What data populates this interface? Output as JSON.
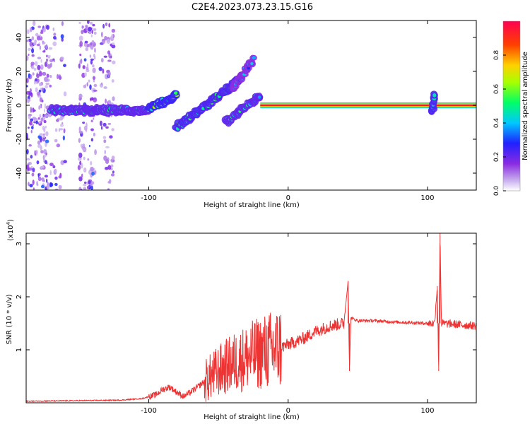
{
  "title": "C2E4.2023.073.23.15.G16",
  "chart_data": [
    {
      "type": "heatmap",
      "xlabel": "Height of straight line (km)",
      "ylabel": "Frequency (Hz)",
      "xlim": [
        -188,
        135
      ],
      "ylim": [
        -50,
        50
      ],
      "xticks": [
        -100,
        0,
        100
      ],
      "yticks": [
        -40,
        -20,
        0,
        20,
        40
      ],
      "colorbar": {
        "label": "Normalized spectral amplitude",
        "range": [
          0,
          1
        ],
        "ticks": [
          "0.0",
          "0.2",
          "0.4",
          "0.6",
          "0.8"
        ],
        "colors": [
          "#ffffff",
          "#c9b0ee",
          "#8a2be2",
          "#2020ff",
          "#00c8ff",
          "#00ff66",
          "#a8ff00",
          "#ffd000",
          "#ff4000",
          "#ff0050"
        ]
      },
      "features": [
        {
          "x": [
            -188,
            -125
          ],
          "y": [
            -50,
            50
          ],
          "amplitude": 0.15,
          "kind": "scatter-noise"
        },
        {
          "x": [
            -170,
            -100
          ],
          "y": [
            -3,
            -3
          ],
          "amplitude": 0.45,
          "kind": "trace"
        },
        {
          "x": [
            -100,
            -80
          ],
          "y": [
            -2,
            6
          ],
          "amplitude": 0.55,
          "kind": "trace"
        },
        {
          "x": [
            -80,
            -35
          ],
          "y": [
            -13,
            15
          ],
          "amplitude": 0.5,
          "kind": "trace"
        },
        {
          "x": [
            -40,
            -25
          ],
          "y": [
            10,
            27
          ],
          "amplitude": 0.35,
          "kind": "trace"
        },
        {
          "x": [
            -45,
            -20
          ],
          "y": [
            -10,
            6
          ],
          "amplitude": 0.45,
          "kind": "trace"
        },
        {
          "x": [
            -20,
            135
          ],
          "y": [
            0,
            0
          ],
          "amplitude": 0.95,
          "kind": "carrier"
        },
        {
          "x": [
            103,
            105
          ],
          "y": [
            -3,
            6
          ],
          "amplitude": 0.5,
          "kind": "blob"
        }
      ]
    },
    {
      "type": "line",
      "xlabel": "Height of straight line (km)",
      "ylabel": "SNR (10 * v/v)",
      "yscale_label": "(x10",
      "yscale_exp": "4",
      "yscale_close": ")",
      "xlim": [
        -188,
        135
      ],
      "ylim": [
        0,
        3.2
      ],
      "xticks": [
        -100,
        0,
        100
      ],
      "yticks": [
        1,
        2,
        3
      ],
      "color": "#ee3333",
      "series": [
        {
          "x": [
            -188,
            -150,
            -120,
            -105,
            -95,
            -90,
            -85,
            -80,
            -75,
            -70,
            -60,
            -50,
            -40,
            -30,
            -20,
            -10,
            0,
            10,
            20,
            30,
            40,
            43,
            44,
            45,
            50,
            60,
            80,
            100,
            105,
            107,
            108,
            109,
            110,
            120,
            135
          ],
          "y": [
            0.03,
            0.04,
            0.05,
            0.08,
            0.15,
            0.25,
            0.3,
            0.2,
            0.12,
            0.2,
            0.4,
            0.6,
            0.75,
            0.85,
            0.95,
            1.0,
            1.1,
            1.2,
            1.35,
            1.45,
            1.5,
            2.3,
            0.6,
            1.6,
            1.55,
            1.55,
            1.52,
            1.5,
            1.5,
            2.2,
            0.6,
            3.2,
            1.5,
            1.48,
            1.45
          ]
        }
      ]
    }
  ]
}
